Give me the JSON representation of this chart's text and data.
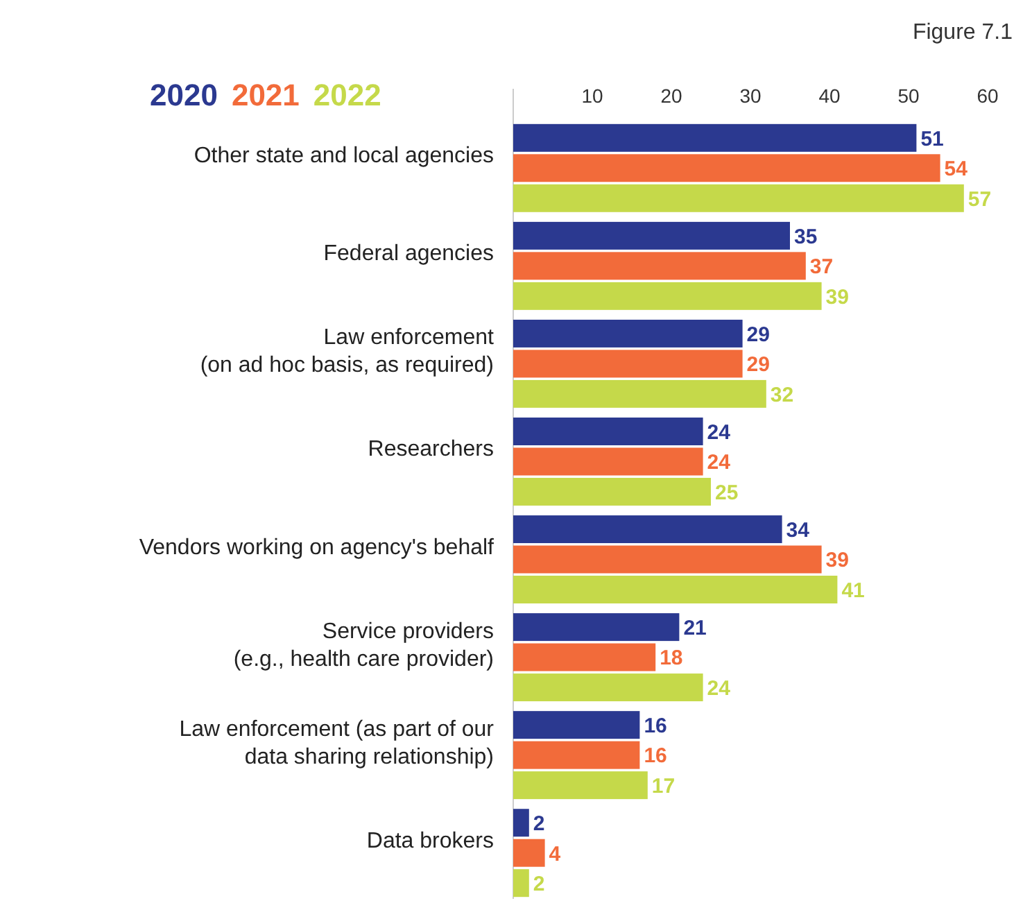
{
  "chart_data": {
    "type": "bar",
    "orientation": "horizontal",
    "annotations": [
      "Figure 7.1"
    ],
    "categories": [
      "Other state and local agencies",
      "Federal agencies",
      "Law enforcement\n(on ad hoc basis, as required)",
      "Researchers",
      "Vendors working on agency's behalf",
      "Service providers\n(e.g., health care provider)",
      "Law enforcement (as part of our\ndata sharing relationship)",
      "Data brokers"
    ],
    "series": [
      {
        "name": "2020",
        "color": "#2b3990",
        "values": [
          51,
          35,
          29,
          24,
          34,
          21,
          16,
          2
        ]
      },
      {
        "name": "2021",
        "color": "#f26b3a",
        "values": [
          54,
          37,
          29,
          24,
          39,
          18,
          16,
          4
        ]
      },
      {
        "name": "2022",
        "color": "#c5d94a",
        "values": [
          57,
          39,
          32,
          25,
          41,
          24,
          17,
          2
        ]
      }
    ],
    "xlim": [
      0,
      60
    ],
    "xticks": [
      10,
      20,
      30,
      40,
      50,
      60
    ],
    "data_labels": true,
    "legend": "top left",
    "grid": false
  }
}
